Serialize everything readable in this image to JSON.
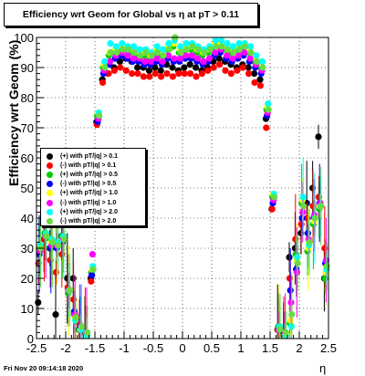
{
  "title": "Efficiency wrt Geom for Global vs   η at pT > 0.11",
  "datestamp": "Fri Nov 20 09:14:18 2020",
  "chart_data": {
    "type": "scatter",
    "title": "Efficiency wrt Geom for Global vs   η at pT > 0.11",
    "xlabel": "η",
    "ylabel": "Efficiency wrt Geom (%)",
    "xlim": [
      -2.5,
      2.5
    ],
    "ylim": [
      0,
      100
    ],
    "x_ticks": [
      "-2.5",
      "-2",
      "-1.5",
      "-1",
      "-0.5",
      "0",
      "0.5",
      "1",
      "1.5",
      "2",
      "2.5"
    ],
    "y_ticks": [
      "0",
      "10",
      "20",
      "30",
      "40",
      "50",
      "60",
      "70",
      "80",
      "90",
      "100"
    ],
    "grid": true,
    "legend_position": "left-middle",
    "x": [
      -2.45,
      -2.35,
      -2.25,
      -2.15,
      -2.05,
      -1.95,
      -1.85,
      -1.75,
      -1.65,
      -1.55,
      -1.45,
      -1.35,
      -1.25,
      -1.15,
      -1.05,
      -0.95,
      -0.85,
      -0.75,
      -0.65,
      -0.55,
      -0.45,
      -0.35,
      -0.25,
      -0.15,
      -0.05,
      0.05,
      0.15,
      0.25,
      0.35,
      0.45,
      0.55,
      0.65,
      0.75,
      0.85,
      0.95,
      1.05,
      1.15,
      1.25,
      1.35,
      1.45,
      1.55,
      1.65,
      1.75,
      1.85,
      1.95,
      2.05,
      2.15,
      2.25,
      2.35,
      2.45
    ],
    "series": [
      {
        "name": "(+) with pT/|q| > 0.1",
        "color": "#000000",
        "values": [
          12,
          33,
          30,
          8,
          34,
          20,
          20,
          3,
          2,
          20,
          72,
          86,
          88,
          90,
          92,
          93,
          92,
          90,
          90,
          89,
          90,
          89,
          91,
          90,
          89,
          90,
          91,
          90,
          89,
          90,
          92,
          93,
          92,
          91,
          90,
          91,
          90,
          88,
          86,
          73,
          43,
          3,
          2,
          27,
          30,
          35,
          45,
          50,
          67,
          20
        ]
      },
      {
        "name": "(-) with pT/|q| > 0.1",
        "color": "#ff0000",
        "values": [
          25,
          33,
          26,
          22,
          28,
          17,
          13,
          5,
          2,
          19,
          71,
          85,
          88,
          89,
          90,
          89,
          88,
          88,
          87,
          87,
          88,
          87,
          88,
          87,
          88,
          88,
          88,
          87,
          88,
          89,
          90,
          91,
          89,
          88,
          89,
          90,
          88,
          85,
          84,
          70,
          43,
          3,
          1,
          20,
          33,
          38,
          40,
          44,
          47,
          30
        ]
      },
      {
        "name": "(+) with pT/|q| > 0.5",
        "color": "#00cc00",
        "values": [
          30,
          35,
          33,
          32,
          34,
          15,
          8,
          3,
          2,
          22,
          74,
          90,
          94,
          95,
          96,
          96,
          95,
          94,
          94,
          93,
          95,
          94,
          96,
          97,
          95,
          96,
          96,
          95,
          94,
          95,
          97,
          98,
          96,
          95,
          96,
          97,
          95,
          92,
          90,
          76,
          47,
          4,
          1,
          5,
          28,
          45,
          29,
          38,
          43,
          20
        ]
      },
      {
        "name": "(-) with pT/|q| > 0.5",
        "color": "#0000ff",
        "values": [
          28,
          34,
          30,
          30,
          32,
          16,
          9,
          4,
          2,
          21,
          72,
          88,
          91,
          93,
          94,
          93,
          92,
          92,
          91,
          91,
          92,
          91,
          93,
          92,
          92,
          93,
          93,
          92,
          91,
          92,
          94,
          95,
          93,
          92,
          93,
          94,
          92,
          90,
          88,
          74,
          45,
          3,
          2,
          16,
          23,
          40,
          35,
          40,
          45,
          25
        ]
      },
      {
        "name": "(+) with pT/|q| > 1.0",
        "color": "#ffff00",
        "values": [
          30,
          34,
          32,
          31,
          33,
          16,
          7,
          3,
          2,
          23,
          75,
          91,
          95,
          96,
          97,
          97,
          96,
          95,
          95,
          94,
          96,
          95,
          97,
          98,
          96,
          97,
          97,
          96,
          95,
          96,
          98,
          98,
          97,
          96,
          97,
          98,
          96,
          93,
          91,
          77,
          48,
          3,
          1,
          6,
          26,
          46,
          30,
          39,
          44,
          22
        ]
      },
      {
        "name": "(-) with pT/|q| > 1.0",
        "color": "#ff00ff",
        "values": [
          29,
          34,
          31,
          31,
          33,
          16,
          8,
          4,
          2,
          28,
          73,
          89,
          92,
          94,
          95,
          94,
          93,
          93,
          92,
          92,
          93,
          92,
          94,
          93,
          93,
          94,
          94,
          93,
          92,
          93,
          95,
          96,
          94,
          93,
          94,
          95,
          93,
          91,
          89,
          75,
          46,
          3,
          2,
          12,
          22,
          42,
          33,
          41,
          45,
          26
        ]
      },
      {
        "name": "(+) with pT/|q| > 2.0",
        "color": "#00ffff",
        "values": [
          31,
          35,
          33,
          32,
          34,
          16,
          6,
          3,
          1,
          24,
          75,
          92,
          98,
          97,
          98,
          97,
          97,
          96,
          96,
          95,
          97,
          96,
          98,
          99,
          97,
          98,
          98,
          97,
          96,
          97,
          99,
          99,
          98,
          97,
          98,
          98,
          97,
          94,
          92,
          78,
          48,
          4,
          1,
          4,
          27,
          47,
          31,
          40,
          44,
          23
        ]
      },
      {
        "name": "(-) with pT/|q| > 2.0",
        "color": "#66dd44",
        "values": [
          30,
          34,
          32,
          31,
          33,
          16,
          7,
          4,
          2,
          23,
          74,
          90,
          95,
          95,
          96,
          96,
          95,
          94,
          95,
          94,
          95,
          94,
          96,
          100,
          95,
          96,
          97,
          96,
          95,
          96,
          97,
          97,
          96,
          95,
          96,
          97,
          95,
          92,
          90,
          76,
          47,
          3,
          2,
          8,
          25,
          44,
          32,
          40,
          44,
          24
        ]
      }
    ]
  }
}
